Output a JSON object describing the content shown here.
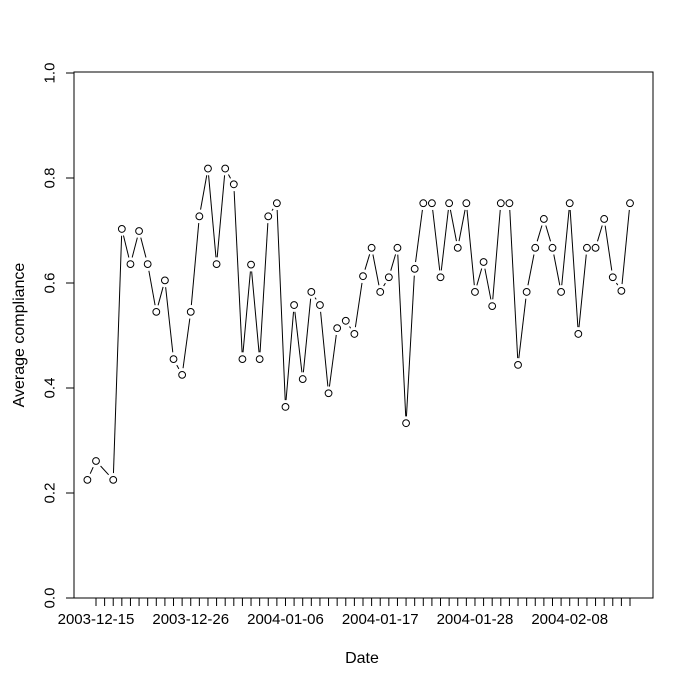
{
  "figure": {
    "background_color": "#ffffff",
    "foreground_color": "#000000"
  },
  "chart_data": {
    "type": "line",
    "title": "",
    "xlabel": "Date",
    "ylabel": "Average compliance",
    "marker": "open-circle",
    "draw_style": "points-with-gapped-segments (R type='b')",
    "grid": false,
    "legend": "none",
    "line_color": "#000000",
    "marker_color": "#000000",
    "text_color": "#000000",
    "ylim": [
      0.0,
      1.0
    ],
    "y_ticks": [
      "0.0",
      "0.2",
      "0.4",
      "0.6",
      "0.8",
      "1.0"
    ],
    "x_tick_interval": "1 day",
    "x_axis_start": "2003-12-15",
    "x_axis_end": "2004-02-15",
    "x_labeled_ticks": [
      "2003-12-15",
      "2003-12-26",
      "2004-01-06",
      "2004-01-17",
      "2004-01-28",
      "2004-02-08"
    ],
    "x": [
      "2003-12-14",
      "2003-12-15",
      "2003-12-17",
      "2003-12-18",
      "2003-12-19",
      "2003-12-20",
      "2003-12-21",
      "2003-12-22",
      "2003-12-23",
      "2003-12-24",
      "2003-12-25",
      "2003-12-26",
      "2003-12-27",
      "2003-12-28",
      "2003-12-29",
      "2003-12-30",
      "2003-12-31",
      "2004-01-01",
      "2004-01-02",
      "2004-01-03",
      "2004-01-04",
      "2004-01-05",
      "2004-01-06",
      "2004-01-07",
      "2004-01-08",
      "2004-01-09",
      "2004-01-10",
      "2004-01-11",
      "2004-01-12",
      "2004-01-13",
      "2004-01-14",
      "2004-01-15",
      "2004-01-16",
      "2004-01-17",
      "2004-01-18",
      "2004-01-19",
      "2004-01-20",
      "2004-01-21",
      "2004-01-22",
      "2004-01-23",
      "2004-01-24",
      "2004-01-25",
      "2004-01-26",
      "2004-01-27",
      "2004-01-28",
      "2004-01-29",
      "2004-01-30",
      "2004-01-31",
      "2004-02-01",
      "2004-02-02",
      "2004-02-03",
      "2004-02-04",
      "2004-02-05",
      "2004-02-06",
      "2004-02-07",
      "2004-02-08",
      "2004-02-09",
      "2004-02-10",
      "2004-02-11",
      "2004-02-12",
      "2004-02-13",
      "2004-02-14",
      "2004-02-15"
    ],
    "y": [
      0.225,
      0.261,
      0.225,
      0.703,
      0.636,
      0.699,
      0.636,
      0.545,
      0.605,
      0.455,
      0.425,
      0.545,
      0.727,
      0.818,
      0.636,
      0.818,
      0.788,
      0.455,
      0.635,
      0.455,
      0.727,
      0.752,
      0.364,
      0.558,
      0.417,
      0.583,
      0.558,
      0.39,
      0.514,
      0.528,
      0.503,
      0.613,
      0.667,
      0.583,
      0.611,
      0.667,
      0.333,
      0.627,
      0.752,
      0.752,
      0.611,
      0.752,
      0.667,
      0.752,
      0.583,
      0.64,
      0.556,
      0.752,
      0.752,
      0.444,
      0.583,
      0.667,
      0.722,
      0.667,
      0.583,
      0.752,
      0.503,
      0.667,
      0.667,
      0.722,
      0.611,
      0.585,
      0.752
    ]
  }
}
